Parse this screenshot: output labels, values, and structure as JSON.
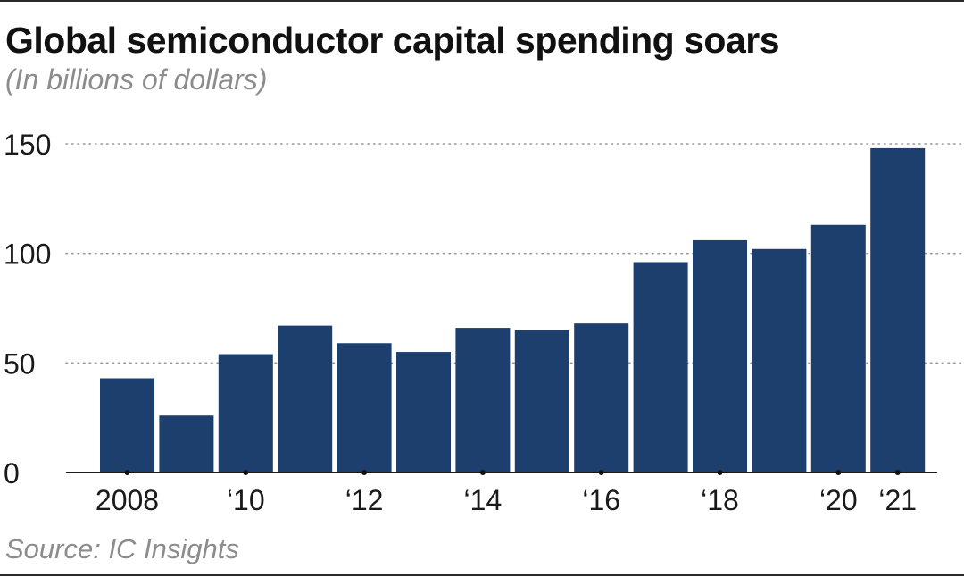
{
  "title": "Global semiconductor capital spending soars",
  "subtitle": "(In billions of dollars)",
  "source": "Source: IC Insights",
  "colors": {
    "bar": "#1c3f6e",
    "grid": "#9a9a9a",
    "axis": "#1a1a1a"
  },
  "chart_data": {
    "type": "bar",
    "x": [
      2008,
      2009,
      2010,
      2011,
      2012,
      2013,
      2014,
      2015,
      2016,
      2017,
      2018,
      2019,
      2020,
      2021
    ],
    "values": [
      43,
      26,
      54,
      67,
      59,
      55,
      66,
      65,
      68,
      96,
      106,
      102,
      113,
      148
    ],
    "x_tick_labels": [
      {
        "x": 2008,
        "label": "2008"
      },
      {
        "x": 2010,
        "label": "‘10"
      },
      {
        "x": 2012,
        "label": "‘12"
      },
      {
        "x": 2014,
        "label": "‘14"
      },
      {
        "x": 2016,
        "label": "‘16"
      },
      {
        "x": 2018,
        "label": "‘18"
      },
      {
        "x": 2020,
        "label": "‘20"
      },
      {
        "x": 2021,
        "label": "‘21"
      }
    ],
    "y_ticks": [
      0,
      50,
      100,
      150
    ],
    "ylim": [
      0,
      150
    ],
    "grid": "horizontal-dotted",
    "legend": "none",
    "xlabel": "",
    "ylabel": ""
  }
}
